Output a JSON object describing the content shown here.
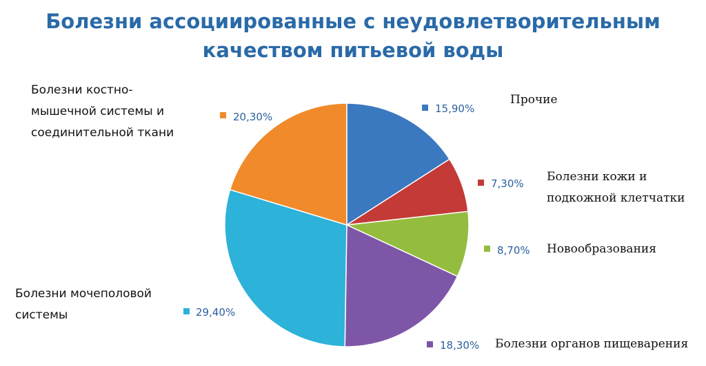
{
  "chart_data": {
    "type": "pie",
    "title_lines": [
      "Болезни ассоциированные с неудовлетворительным",
      "качеством питьевой воды"
    ],
    "slices": [
      {
        "label_lines": [
          "Прочие"
        ],
        "value": 15.9,
        "value_label": "15,90%",
        "color": "#3a78c0"
      },
      {
        "label_lines": [
          "Болезни кожи и",
          "подкожной клетчатки"
        ],
        "value": 7.3,
        "value_label": "7,30%",
        "color": "#c43a36"
      },
      {
        "label_lines": [
          "Новообразования"
        ],
        "value": 8.7,
        "value_label": "8,70%",
        "color": "#94bc3f"
      },
      {
        "label_lines": [
          "Болезни органов пищеварения"
        ],
        "value": 18.3,
        "value_label": "18,30%",
        "color": "#7e56a8"
      },
      {
        "label_lines": [
          "Болезни мочеполовой",
          "системы"
        ],
        "value": 29.4,
        "value_label": "29,40%",
        "color": "#2db2d9"
      },
      {
        "label_lines": [
          "Болезни костно-",
          "мышечной системы и",
          "соединительной ткани"
        ],
        "value": 20.3,
        "value_label": "20,30%",
        "color": "#f08a2a"
      }
    ],
    "legend_placement": "none",
    "start_angle_deg": 0,
    "direction": "clockwise"
  }
}
